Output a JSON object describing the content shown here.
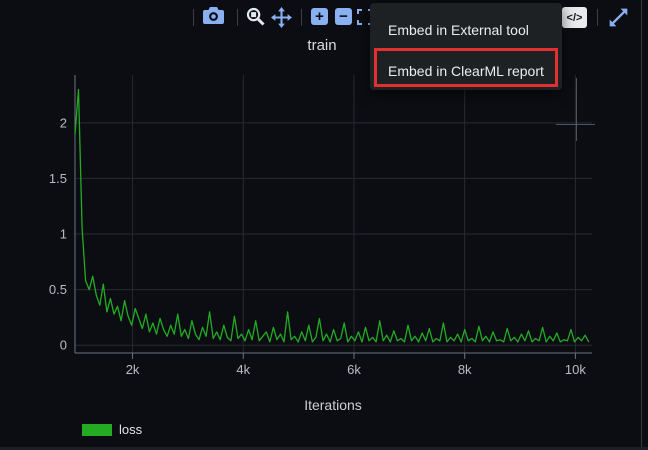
{
  "colors": {
    "background": "#0b0d13",
    "icon_blue": "#8ab0f2",
    "icon_active": "#e3e8f0",
    "grid": "#272b33",
    "axis": "#6e737c",
    "tick_label": "#b9bdc6",
    "menu_bg": "#1e2124",
    "annotation_red": "#e22f2f",
    "series_green": "#23ac23"
  },
  "toolbar": {
    "zoom_in_label": "+",
    "zoom_out_label": "−",
    "embed_code_label": "</>",
    "icons": [
      {
        "name": "camera",
        "action": "download plot as png"
      },
      {
        "name": "box-zoom",
        "action": "zoom"
      },
      {
        "name": "pan",
        "action": "pan"
      },
      {
        "name": "zoom-in",
        "action": "zoom in"
      },
      {
        "name": "zoom-out",
        "action": "zoom out"
      },
      {
        "name": "autoscale",
        "action": "autoscale"
      },
      {
        "name": "embed-code",
        "action": "embed"
      },
      {
        "name": "maximize",
        "action": "maximize"
      }
    ]
  },
  "menu": {
    "items": [
      {
        "label": "Embed in External tool",
        "highlighted": false
      },
      {
        "label": "Embed in ClearML report",
        "highlighted": true
      }
    ]
  },
  "chart_data": {
    "type": "line",
    "title": "train",
    "xlabel": "Iterations",
    "ylabel": "",
    "grid": true,
    "legend_position": "bottom-left",
    "xlim": [
      960,
      10300
    ],
    "ylim": [
      -0.07,
      2.43
    ],
    "xticks": [
      {
        "v": 2000,
        "label": "2k"
      },
      {
        "v": 4000,
        "label": "4k"
      },
      {
        "v": 6000,
        "label": "6k"
      },
      {
        "v": 8000,
        "label": "8k"
      },
      {
        "v": 10000,
        "label": "10k"
      }
    ],
    "yticks": [
      {
        "v": 0,
        "label": "0"
      },
      {
        "v": 0.5,
        "label": "0.5"
      },
      {
        "v": 1,
        "label": "1"
      },
      {
        "v": 1.5,
        "label": "1.5"
      },
      {
        "v": 2,
        "label": "2"
      }
    ],
    "series": [
      {
        "name": "loss",
        "color": "#23ac23",
        "x_start": 960,
        "x_step": 64,
        "values": [
          1.9,
          2.3,
          1.05,
          0.58,
          0.5,
          0.62,
          0.45,
          0.36,
          0.55,
          0.3,
          0.42,
          0.28,
          0.35,
          0.22,
          0.4,
          0.26,
          0.18,
          0.33,
          0.24,
          0.15,
          0.28,
          0.12,
          0.2,
          0.1,
          0.24,
          0.14,
          0.08,
          0.18,
          0.1,
          0.28,
          0.08,
          0.14,
          0.06,
          0.22,
          0.1,
          0.05,
          0.16,
          0.08,
          0.3,
          0.06,
          0.12,
          0.05,
          0.18,
          0.07,
          0.04,
          0.26,
          0.06,
          0.1,
          0.04,
          0.14,
          0.05,
          0.22,
          0.04,
          0.08,
          0.12,
          0.03,
          0.16,
          0.05,
          0.1,
          0.03,
          0.3,
          0.05,
          0.08,
          0.03,
          0.12,
          0.04,
          0.18,
          0.03,
          0.07,
          0.24,
          0.04,
          0.1,
          0.03,
          0.14,
          0.04,
          0.06,
          0.2,
          0.03,
          0.08,
          0.04,
          0.12,
          0.03,
          0.16,
          0.04,
          0.07,
          0.03,
          0.22,
          0.04,
          0.09,
          0.03,
          0.13,
          0.04,
          0.06,
          0.03,
          0.18,
          0.04,
          0.08,
          0.03,
          0.11,
          0.04,
          0.15,
          0.03,
          0.06,
          0.04,
          0.2,
          0.03,
          0.07,
          0.04,
          0.1,
          0.03,
          0.14,
          0.04,
          0.06,
          0.03,
          0.17,
          0.04,
          0.08,
          0.03,
          0.12,
          0.04,
          0.05,
          0.03,
          0.15,
          0.04,
          0.07,
          0.03,
          0.1,
          0.04,
          0.13,
          0.03,
          0.06,
          0.04,
          0.16,
          0.03,
          0.08,
          0.04,
          0.11,
          0.03,
          0.05,
          0.04,
          0.14,
          0.03,
          0.07,
          0.04,
          0.09,
          0.03
        ]
      }
    ]
  }
}
